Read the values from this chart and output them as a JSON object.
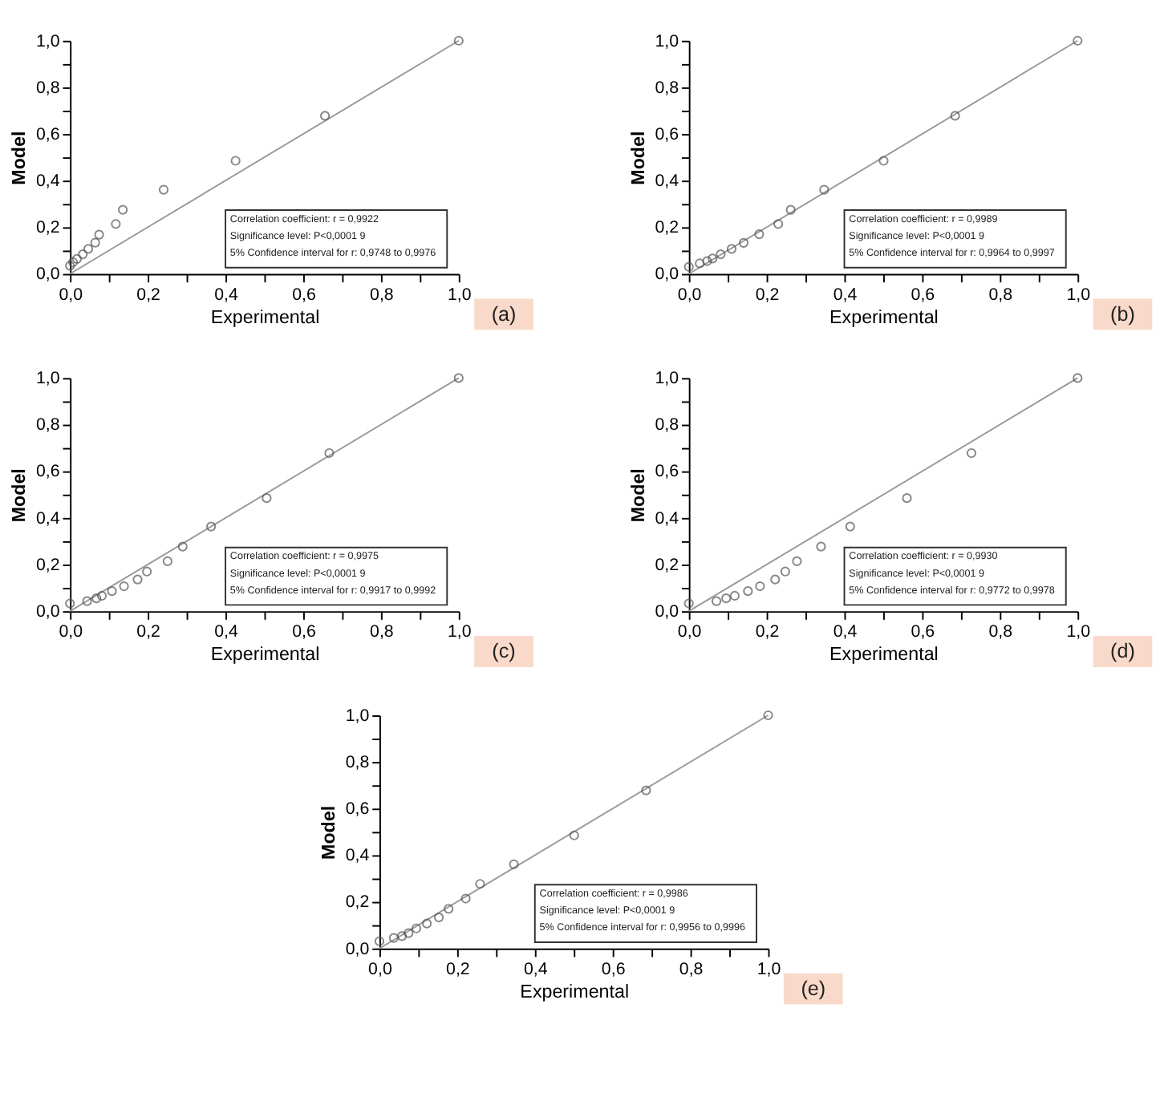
{
  "chart_data": [
    {
      "type": "scatter",
      "xlabel": "Experimental",
      "ylabel": "Model",
      "xlim": [
        0,
        1
      ],
      "ylim": [
        0,
        1
      ],
      "xticks": [
        {
          "value": 0,
          "label": "0,0"
        },
        {
          "value": 0.1,
          "label": null
        },
        {
          "value": 0.2,
          "label": "0,2"
        },
        {
          "value": 0.3,
          "label": null
        },
        {
          "value": 0.4,
          "label": "0,4"
        },
        {
          "value": 0.5,
          "label": null
        },
        {
          "value": 0.6,
          "label": "0,6"
        },
        {
          "value": 0.7,
          "label": null
        },
        {
          "value": 0.8,
          "label": "0,8"
        },
        {
          "value": 0.9,
          "label": null
        },
        {
          "value": 1,
          "label": "1,0"
        }
      ],
      "yticks": [
        {
          "value": 0,
          "label": "0,0"
        },
        {
          "value": 0.1,
          "label": null
        },
        {
          "value": 0.2,
          "label": "0,2"
        },
        {
          "value": 0.3,
          "label": null
        },
        {
          "value": 0.4,
          "label": "0,4"
        },
        {
          "value": 0.5,
          "label": null
        },
        {
          "value": 0.6,
          "label": "0,6"
        },
        {
          "value": 0.7,
          "label": null
        },
        {
          "value": 0.8,
          "label": "0,8"
        },
        {
          "value": 0.9,
          "label": null
        },
        {
          "value": 1,
          "label": "1,0"
        }
      ],
      "grid": false,
      "marker": "circle",
      "series": [
        {
          "type": "line",
          "color": "#999999",
          "marker": "none",
          "line_style": "solid",
          "x": [
            0,
            1
          ],
          "values": [
            0,
            1
          ]
        },
        {
          "color": "#555555",
          "x": [
            0,
            0.008,
            0.018,
            0.033,
            0.047,
            0.065,
            0.075,
            0.118,
            0.136,
            0.241,
            0.426,
            0.656,
            1.0
          ],
          "values": [
            0.035,
            0.05,
            0.064,
            0.084,
            0.107,
            0.134,
            0.168,
            0.214,
            0.275,
            0.361,
            0.485,
            0.678,
            1.0
          ]
        }
      ],
      "annotations": [
        "Correlation coefficient: r = 0,9922",
        "Significance level: P<0,0001 9",
        "5% Confidence interval for r: 0,9748 to 0,9976",
        "(a)"
      ]
    },
    {
      "type": "scatter",
      "xlabel": "Experimental",
      "ylabel": "Model",
      "xlim": [
        0,
        1
      ],
      "ylim": [
        0,
        1
      ],
      "xticks": [
        {
          "value": 0,
          "label": "0,0"
        },
        {
          "value": 0.1,
          "label": null
        },
        {
          "value": 0.2,
          "label": "0,2"
        },
        {
          "value": 0.3,
          "label": null
        },
        {
          "value": 0.4,
          "label": "0,4"
        },
        {
          "value": 0.5,
          "label": null
        },
        {
          "value": 0.6,
          "label": "0,6"
        },
        {
          "value": 0.7,
          "label": null
        },
        {
          "value": 0.8,
          "label": "0,8"
        },
        {
          "value": 0.9,
          "label": null
        },
        {
          "value": 1,
          "label": "1,0"
        }
      ],
      "yticks": [
        {
          "value": 0,
          "label": "0,0"
        },
        {
          "value": 0.1,
          "label": null
        },
        {
          "value": 0.2,
          "label": "0,2"
        },
        {
          "value": 0.3,
          "label": null
        },
        {
          "value": 0.4,
          "label": "0,4"
        },
        {
          "value": 0.5,
          "label": null
        },
        {
          "value": 0.6,
          "label": "0,6"
        },
        {
          "value": 0.7,
          "label": null
        },
        {
          "value": 0.8,
          "label": "0,8"
        },
        {
          "value": 0.9,
          "label": null
        },
        {
          "value": 1,
          "label": "1,0"
        }
      ],
      "grid": false,
      "marker": "circle",
      "series": [
        {
          "type": "line",
          "color": "#999999",
          "marker": "none",
          "line_style": "solid",
          "x": [
            0,
            1
          ],
          "values": [
            0,
            1
          ]
        },
        {
          "color": "#555555",
          "x": [
            0,
            0.028,
            0.047,
            0.061,
            0.082,
            0.11,
            0.141,
            0.181,
            0.23,
            0.262,
            0.348,
            0.501,
            0.685,
            1.0
          ],
          "values": [
            0.03,
            0.045,
            0.055,
            0.066,
            0.084,
            0.107,
            0.133,
            0.17,
            0.214,
            0.275,
            0.361,
            0.485,
            0.678,
            1.0
          ]
        }
      ],
      "annotations": [
        "Correlation coefficient: r = 0,9989",
        "Significance level: P<0,0001 9",
        "5% Confidence interval for r: 0,9964 to 0,9997",
        "(b)"
      ]
    },
    {
      "type": "scatter",
      "xlabel": "Experimental",
      "ylabel": "Model",
      "xlim": [
        0,
        1
      ],
      "ylim": [
        0,
        1
      ],
      "xticks": [
        {
          "value": 0,
          "label": "0,0"
        },
        {
          "value": 0.1,
          "label": null
        },
        {
          "value": 0.2,
          "label": "0,2"
        },
        {
          "value": 0.3,
          "label": null
        },
        {
          "value": 0.4,
          "label": "0,4"
        },
        {
          "value": 0.5,
          "label": null
        },
        {
          "value": 0.6,
          "label": "0,6"
        },
        {
          "value": 0.7,
          "label": null
        },
        {
          "value": 0.8,
          "label": "0,8"
        },
        {
          "value": 0.9,
          "label": null
        },
        {
          "value": 1,
          "label": "1,0"
        }
      ],
      "yticks": [
        {
          "value": 0,
          "label": "0,0"
        },
        {
          "value": 0.1,
          "label": null
        },
        {
          "value": 0.2,
          "label": "0,2"
        },
        {
          "value": 0.3,
          "label": null
        },
        {
          "value": 0.4,
          "label": "0,4"
        },
        {
          "value": 0.5,
          "label": null
        },
        {
          "value": 0.6,
          "label": "0,6"
        },
        {
          "value": 0.7,
          "label": null
        },
        {
          "value": 0.8,
          "label": "0,8"
        },
        {
          "value": 0.9,
          "label": null
        },
        {
          "value": 1,
          "label": "1,0"
        }
      ],
      "grid": false,
      "marker": "circle",
      "series": [
        {
          "type": "line",
          "color": "#999999",
          "marker": "none",
          "line_style": "solid",
          "x": [
            0,
            1
          ],
          "values": [
            0,
            1
          ]
        },
        {
          "color": "#555555",
          "x": [
            0,
            0.044,
            0.068,
            0.082,
            0.108,
            0.139,
            0.174,
            0.198,
            0.251,
            0.29,
            0.363,
            0.506,
            0.667,
            1.0
          ],
          "values": [
            0.033,
            0.043,
            0.055,
            0.066,
            0.086,
            0.107,
            0.136,
            0.17,
            0.214,
            0.277,
            0.363,
            0.485,
            0.678,
            1.0
          ]
        }
      ],
      "annotations": [
        "Correlation coefficient: r = 0,9975",
        "Significance level: P<0,0001 9",
        "5% Confidence interval for r: 0,9917 to 0,9992",
        "(c)"
      ]
    },
    {
      "type": "scatter",
      "xlabel": "Experimental",
      "ylabel": "Model",
      "xlim": [
        0,
        1
      ],
      "ylim": [
        0,
        1
      ],
      "xticks": [
        {
          "value": 0,
          "label": "0,0"
        },
        {
          "value": 0.1,
          "label": null
        },
        {
          "value": 0.2,
          "label": "0,2"
        },
        {
          "value": 0.3,
          "label": null
        },
        {
          "value": 0.4,
          "label": "0,4"
        },
        {
          "value": 0.5,
          "label": null
        },
        {
          "value": 0.6,
          "label": "0,6"
        },
        {
          "value": 0.7,
          "label": null
        },
        {
          "value": 0.8,
          "label": "0,8"
        },
        {
          "value": 0.9,
          "label": null
        },
        {
          "value": 1,
          "label": "1,0"
        }
      ],
      "yticks": [
        {
          "value": 0,
          "label": "0,0"
        },
        {
          "value": 0.1,
          "label": null
        },
        {
          "value": 0.2,
          "label": "0,2"
        },
        {
          "value": 0.3,
          "label": null
        },
        {
          "value": 0.4,
          "label": "0,4"
        },
        {
          "value": 0.5,
          "label": null
        },
        {
          "value": 0.6,
          "label": "0,6"
        },
        {
          "value": 0.7,
          "label": null
        },
        {
          "value": 0.8,
          "label": "0,8"
        },
        {
          "value": 0.9,
          "label": null
        },
        {
          "value": 1,
          "label": "1,0"
        }
      ],
      "grid": false,
      "marker": "circle",
      "series": [
        {
          "type": "line",
          "color": "#999999",
          "marker": "none",
          "line_style": "solid",
          "x": [
            0,
            1
          ],
          "values": [
            0,
            1
          ]
        },
        {
          "color": "#555555",
          "x": [
            0,
            0.071,
            0.096,
            0.118,
            0.152,
            0.183,
            0.222,
            0.248,
            0.278,
            0.34,
            0.415,
            0.561,
            0.727,
            1.0
          ],
          "values": [
            0.033,
            0.043,
            0.055,
            0.066,
            0.086,
            0.107,
            0.136,
            0.17,
            0.214,
            0.277,
            0.363,
            0.485,
            0.678,
            1.0
          ]
        }
      ],
      "annotations": [
        "Correlation coefficient: r = 0,9930",
        "Significance level: P<0,0001 9",
        "5% Confidence interval for r: 0,9772 to 0,9978",
        "(d)"
      ]
    },
    {
      "type": "scatter",
      "xlabel": "Experimental",
      "ylabel": "Model",
      "xlim": [
        0,
        1
      ],
      "ylim": [
        0,
        1
      ],
      "xticks": [
        {
          "value": 0,
          "label": "0,0"
        },
        {
          "value": 0.1,
          "label": null
        },
        {
          "value": 0.2,
          "label": "0,2"
        },
        {
          "value": 0.3,
          "label": null
        },
        {
          "value": 0.4,
          "label": "0,4"
        },
        {
          "value": 0.5,
          "label": null
        },
        {
          "value": 0.6,
          "label": "0,6"
        },
        {
          "value": 0.7,
          "label": null
        },
        {
          "value": 0.8,
          "label": "0,8"
        },
        {
          "value": 0.9,
          "label": null
        },
        {
          "value": 1,
          "label": "1,0"
        }
      ],
      "yticks": [
        {
          "value": 0,
          "label": "0,0"
        },
        {
          "value": 0.1,
          "label": null
        },
        {
          "value": 0.2,
          "label": "0,2"
        },
        {
          "value": 0.3,
          "label": null
        },
        {
          "value": 0.4,
          "label": "0,4"
        },
        {
          "value": 0.5,
          "label": null
        },
        {
          "value": 0.6,
          "label": "0,6"
        },
        {
          "value": 0.7,
          "label": null
        },
        {
          "value": 0.8,
          "label": "0,8"
        },
        {
          "value": 0.9,
          "label": null
        },
        {
          "value": 1,
          "label": "1,0"
        }
      ],
      "grid": false,
      "marker": "circle",
      "series": [
        {
          "type": "line",
          "color": "#999999",
          "marker": "none",
          "line_style": "solid",
          "x": [
            0,
            1
          ],
          "values": [
            0,
            1
          ]
        },
        {
          "color": "#555555",
          "x": [
            0,
            0.037,
            0.058,
            0.075,
            0.095,
            0.122,
            0.153,
            0.178,
            0.222,
            0.259,
            0.346,
            0.501,
            0.686,
            1.0
          ],
          "values": [
            0.031,
            0.045,
            0.053,
            0.066,
            0.086,
            0.107,
            0.133,
            0.17,
            0.214,
            0.277,
            0.361,
            0.485,
            0.678,
            1.0
          ]
        }
      ],
      "annotations": [
        "Correlation coefficient: r = 0,9986",
        "Significance level: P<0,0001 9",
        "5% Confidence interval for r: 0,9956 to 0,9996",
        "(e)"
      ]
    }
  ]
}
